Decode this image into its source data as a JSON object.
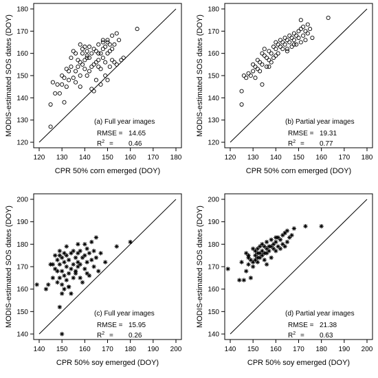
{
  "chart_data": [
    {
      "type": "scatter",
      "marker": "open-circle",
      "annotation": "(a) Full year images",
      "rmse_label": "RMSE =",
      "rmse_value": "14.65",
      "r2_label": "R",
      "r2_sup": "2",
      "r2_eq": "=",
      "r2_value": "0.46",
      "xlabel": "CPR 50% corn emerged (DOY)",
      "ylabel": "MODIS-estimated SOS dates (DOY)",
      "xlim": [
        120,
        180
      ],
      "ylim": [
        120,
        180
      ],
      "xticks": [
        120,
        130,
        140,
        150,
        160,
        170,
        180
      ],
      "yticks": [
        120,
        130,
        140,
        150,
        160,
        170,
        180
      ],
      "identity_line": true,
      "x": [
        125,
        125,
        126,
        127,
        128,
        129,
        130,
        130,
        131,
        131,
        132,
        132,
        133,
        133,
        134,
        134,
        135,
        135,
        136,
        136,
        136,
        137,
        137,
        138,
        138,
        138,
        139,
        139,
        139,
        140,
        140,
        140,
        141,
        141,
        141,
        142,
        142,
        142,
        143,
        143,
        144,
        144,
        144,
        145,
        145,
        145,
        146,
        146,
        146,
        147,
        147,
        147,
        148,
        148,
        148,
        149,
        149,
        149,
        150,
        150,
        150,
        151,
        151,
        151,
        152,
        152,
        152,
        153,
        153,
        154,
        154,
        155,
        156,
        157,
        163,
        143,
        150,
        146,
        148,
        138,
        141
      ],
      "y": [
        127,
        137,
        147,
        142,
        146,
        142,
        146,
        150,
        138,
        149,
        145,
        153,
        152,
        148,
        154,
        158,
        149,
        161,
        147,
        152,
        160,
        157,
        154,
        145,
        150,
        156,
        155,
        160,
        162,
        157,
        153,
        163,
        150,
        158,
        161,
        152,
        158,
        163,
        154,
        160,
        143,
        155,
        162,
        148,
        156,
        161,
        157,
        154,
        164,
        146,
        153,
        160,
        162,
        158,
        165,
        150,
        156,
        163,
        148,
        160,
        166,
        154,
        161,
        164,
        157,
        162,
        168,
        156,
        164,
        155,
        169,
        166,
        157,
        158,
        171,
        144,
        165,
        160,
        166,
        164,
        159
      ]
    },
    {
      "type": "scatter",
      "marker": "open-circle",
      "annotation": "(b) Partial year images",
      "rmse_label": "RMSE =",
      "rmse_value": "19.31",
      "r2_label": "R",
      "r2_sup": "2",
      "r2_eq": "=",
      "r2_value": "0.77",
      "xlabel": "CPR 50% corn emerged (DOY)",
      "ylabel": "MODIS-estimated SOS dates (DOY)",
      "xlim": [
        120,
        180
      ],
      "ylim": [
        120,
        180
      ],
      "xticks": [
        120,
        130,
        140,
        150,
        160,
        170,
        180
      ],
      "yticks": [
        120,
        130,
        140,
        150,
        160,
        170,
        180
      ],
      "identity_line": true,
      "x": [
        125,
        125,
        126,
        127,
        128,
        129,
        130,
        130,
        131,
        131,
        132,
        132,
        133,
        133,
        134,
        134,
        135,
        135,
        136,
        136,
        137,
        137,
        138,
        138,
        139,
        139,
        140,
        140,
        141,
        141,
        142,
        142,
        143,
        143,
        144,
        144,
        145,
        145,
        146,
        146,
        147,
        147,
        148,
        148,
        149,
        149,
        150,
        150,
        151,
        151,
        152,
        152,
        153,
        153,
        154,
        154,
        155,
        156,
        163,
        134,
        137,
        140,
        145,
        148,
        151
      ],
      "y": [
        137,
        143,
        150,
        149,
        151,
        150,
        152,
        155,
        149,
        154,
        153,
        157,
        152,
        156,
        155,
        160,
        159,
        162,
        154,
        158,
        157,
        161,
        156,
        160,
        163,
        158,
        162,
        165,
        160,
        164,
        163,
        166,
        162,
        165,
        164,
        167,
        161,
        166,
        165,
        168,
        163,
        167,
        166,
        169,
        164,
        168,
        167,
        170,
        165,
        171,
        168,
        172,
        166,
        170,
        169,
        173,
        171,
        167,
        176,
        146,
        154,
        159,
        162,
        164,
        175
      ]
    },
    {
      "type": "scatter",
      "marker": "asterisk",
      "annotation": "(c) Full year images",
      "rmse_label": "RMSE =",
      "rmse_value": "15.95",
      "r2_label": "R",
      "r2_sup": "2",
      "r2_eq": "=",
      "r2_value": "0.26",
      "xlabel": "CPR 50% soy emerged (DOY)",
      "ylabel": "MODIS-estimated SOS dates (DOY)",
      "xlim": [
        140,
        200
      ],
      "ylim": [
        140,
        200
      ],
      "xticks": [
        140,
        150,
        160,
        170,
        180,
        190,
        200
      ],
      "yticks": [
        140,
        150,
        160,
        170,
        180,
        190,
        200
      ],
      "identity_line": true,
      "x": [
        139,
        143,
        144,
        145,
        146,
        146,
        147,
        147,
        148,
        148,
        148,
        149,
        149,
        149,
        149,
        150,
        150,
        150,
        150,
        151,
        151,
        151,
        151,
        152,
        152,
        152,
        152,
        153,
        153,
        153,
        154,
        154,
        154,
        155,
        155,
        155,
        156,
        156,
        156,
        157,
        157,
        157,
        158,
        158,
        158,
        159,
        159,
        160,
        160,
        160,
        161,
        161,
        162,
        162,
        163,
        163,
        164,
        164,
        165,
        165,
        166,
        167,
        169,
        174,
        180,
        150,
        153,
        149,
        157,
        161
      ],
      "y": [
        162,
        160,
        162,
        171,
        165,
        171,
        169,
        175,
        163,
        168,
        173,
        152,
        165,
        171,
        177,
        140,
        162,
        168,
        174,
        160,
        166,
        172,
        176,
        164,
        170,
        175,
        179,
        161,
        167,
        173,
        158,
        169,
        176,
        165,
        171,
        177,
        168,
        174,
        167,
        170,
        176,
        172,
        165,
        171,
        177,
        163,
        174,
        169,
        175,
        180,
        172,
        178,
        166,
        176,
        173,
        181,
        170,
        177,
        174,
        183,
        168,
        176,
        172,
        179,
        181,
        158,
        161,
        175,
        180,
        167
      ]
    },
    {
      "type": "scatter",
      "marker": "asterisk",
      "annotation": "(d) Partial year images",
      "rmse_label": "RMSE =",
      "rmse_value": "21.38",
      "r2_label": "R",
      "r2_sup": "2",
      "r2_eq": "=",
      "r2_value": "0.63",
      "xlabel": "CPR 50% soy emerged (DOY)",
      "ylabel": "MODIS-estimated SOS dates (DOY)",
      "xlim": [
        140,
        200
      ],
      "ylim": [
        140,
        200
      ],
      "xticks": [
        140,
        150,
        160,
        170,
        180,
        190,
        200
      ],
      "yticks": [
        140,
        150,
        160,
        170,
        180,
        190,
        200
      ],
      "identity_line": true,
      "x": [
        139,
        144,
        145,
        146,
        147,
        147,
        148,
        148,
        149,
        149,
        150,
        150,
        150,
        151,
        151,
        151,
        152,
        152,
        152,
        153,
        153,
        153,
        154,
        154,
        154,
        155,
        155,
        155,
        156,
        156,
        156,
        157,
        157,
        158,
        158,
        158,
        159,
        159,
        160,
        160,
        161,
        161,
        162,
        162,
        163,
        163,
        164,
        164,
        165,
        165,
        166,
        167,
        168,
        173,
        180,
        148,
        152,
        156,
        160,
        164
      ],
      "y": [
        169,
        164,
        172,
        164,
        168,
        176,
        171,
        175,
        165,
        173,
        170,
        172,
        178,
        173,
        175,
        177,
        172,
        176,
        178,
        174,
        176,
        179,
        175,
        177,
        180,
        173,
        176,
        179,
        176,
        178,
        181,
        177,
        179,
        174,
        179,
        182,
        178,
        180,
        177,
        181,
        179,
        183,
        178,
        182,
        180,
        184,
        179,
        185,
        181,
        186,
        183,
        184,
        187,
        188,
        188,
        174,
        174,
        171,
        183,
        185
      ]
    }
  ]
}
